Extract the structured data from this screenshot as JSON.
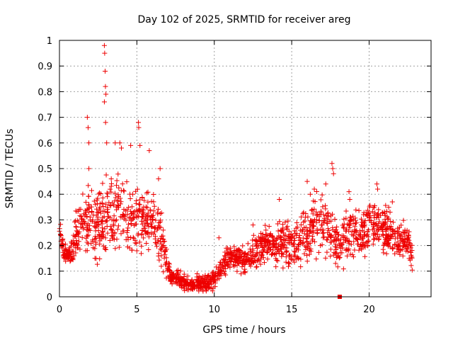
{
  "chart_data": {
    "type": "scatter",
    "title": "Day 102 of 2025, SRMTID for receiver areg",
    "xlabel": "GPS time / hours",
    "ylabel": "SRMTID / TECUs",
    "xlim": [
      0,
      24
    ],
    "ylim": [
      0,
      1
    ],
    "xticks": [
      "0",
      "5",
      "10",
      "15",
      "20"
    ],
    "yticks": [
      "0",
      "0.1",
      "0.2",
      "0.3",
      "0.4",
      "0.5",
      "0.6",
      "0.7",
      "0.8",
      "0.9",
      "1"
    ],
    "grid": true,
    "marker": "plus",
    "color": "#ee0000",
    "envelope": {
      "hours": [
        0,
        0.3,
        0.7,
        1.0,
        1.5,
        2.0,
        2.5,
        3.0,
        3.5,
        4.0,
        4.5,
        5.0,
        5.5,
        6.0,
        6.5,
        6.8,
        7.2,
        7.6,
        8.0,
        8.5,
        9.0,
        9.5,
        10.0,
        10.5,
        11.0,
        11.5,
        12.0,
        12.5,
        13.0,
        13.5,
        14.0,
        14.5,
        15.0,
        15.5,
        16.0,
        16.5,
        17.0,
        17.5,
        18.0,
        18.5,
        19.0,
        19.5,
        20.0,
        20.5,
        21.0,
        21.5,
        22.0,
        22.5,
        22.8
      ],
      "mean": [
        0.27,
        0.17,
        0.16,
        0.22,
        0.3,
        0.3,
        0.28,
        0.32,
        0.33,
        0.34,
        0.28,
        0.3,
        0.3,
        0.3,
        0.25,
        0.15,
        0.08,
        0.07,
        0.06,
        0.05,
        0.05,
        0.05,
        0.07,
        0.12,
        0.15,
        0.14,
        0.15,
        0.17,
        0.2,
        0.22,
        0.2,
        0.22,
        0.2,
        0.22,
        0.25,
        0.28,
        0.3,
        0.25,
        0.2,
        0.24,
        0.26,
        0.25,
        0.28,
        0.3,
        0.26,
        0.24,
        0.22,
        0.22,
        0.15
      ],
      "spread": [
        0.03,
        0.03,
        0.03,
        0.08,
        0.1,
        0.12,
        0.12,
        0.12,
        0.12,
        0.12,
        0.1,
        0.12,
        0.1,
        0.1,
        0.1,
        0.06,
        0.03,
        0.03,
        0.03,
        0.03,
        0.03,
        0.03,
        0.04,
        0.04,
        0.04,
        0.04,
        0.05,
        0.05,
        0.06,
        0.06,
        0.06,
        0.08,
        0.07,
        0.08,
        0.1,
        0.1,
        0.1,
        0.1,
        0.08,
        0.08,
        0.08,
        0.08,
        0.08,
        0.08,
        0.07,
        0.07,
        0.06,
        0.06,
        0.04
      ],
      "count": 1800
    },
    "peaks": [
      {
        "x": 1.8,
        "y": 0.7
      },
      {
        "x": 1.85,
        "y": 0.66
      },
      {
        "x": 1.9,
        "y": 0.6
      },
      {
        "x": 1.9,
        "y": 0.5
      },
      {
        "x": 2.9,
        "y": 0.98
      },
      {
        "x": 2.92,
        "y": 0.95
      },
      {
        "x": 2.95,
        "y": 0.88
      },
      {
        "x": 2.97,
        "y": 0.82
      },
      {
        "x": 3.0,
        "y": 0.79
      },
      {
        "x": 2.9,
        "y": 0.76
      },
      {
        "x": 2.98,
        "y": 0.68
      },
      {
        "x": 3.05,
        "y": 0.6
      },
      {
        "x": 3.6,
        "y": 0.6
      },
      {
        "x": 3.9,
        "y": 0.6
      },
      {
        "x": 4.0,
        "y": 0.58
      },
      {
        "x": 4.6,
        "y": 0.59
      },
      {
        "x": 5.1,
        "y": 0.68
      },
      {
        "x": 5.12,
        "y": 0.66
      },
      {
        "x": 5.2,
        "y": 0.59
      },
      {
        "x": 5.8,
        "y": 0.57
      },
      {
        "x": 6.5,
        "y": 0.5
      },
      {
        "x": 6.4,
        "y": 0.46
      },
      {
        "x": 10.3,
        "y": 0.23
      },
      {
        "x": 12.5,
        "y": 0.28
      },
      {
        "x": 14.2,
        "y": 0.38
      },
      {
        "x": 16.0,
        "y": 0.45
      },
      {
        "x": 16.2,
        "y": 0.4
      },
      {
        "x": 17.2,
        "y": 0.44
      },
      {
        "x": 17.6,
        "y": 0.52
      },
      {
        "x": 17.65,
        "y": 0.5
      },
      {
        "x": 17.7,
        "y": 0.48
      },
      {
        "x": 18.7,
        "y": 0.41
      },
      {
        "x": 18.75,
        "y": 0.38
      },
      {
        "x": 20.5,
        "y": 0.44
      },
      {
        "x": 20.55,
        "y": 0.42
      },
      {
        "x": 21.5,
        "y": 0.37
      },
      {
        "x": 18.1,
        "y": 0.0
      }
    ]
  }
}
